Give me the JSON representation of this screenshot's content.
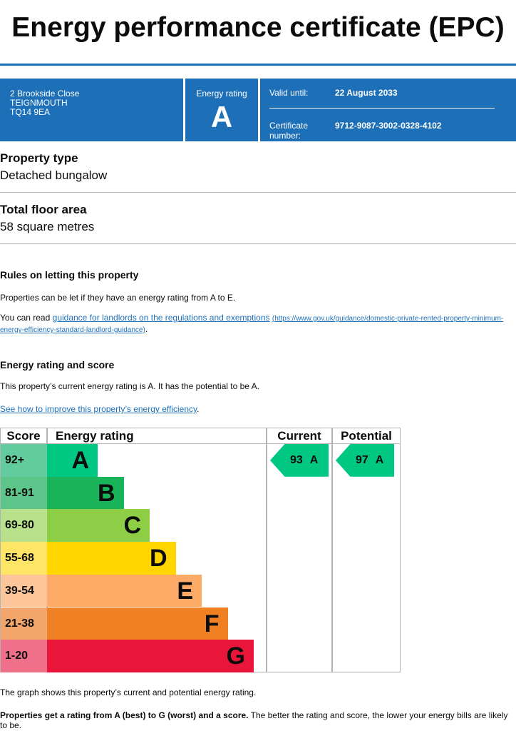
{
  "header": {
    "title": "Energy performance certificate (EPC)",
    "address": [
      "2 Brookside Close",
      "TEIGNMOUTH",
      "TQ14 9EA"
    ],
    "energy_rating_label": "Energy rating",
    "energy_rating": "A",
    "valid_until_label": "Valid until:",
    "valid_until": "22 August 2033",
    "certificate_label": "Certificate number:",
    "certificate_number": "9712-9087-3002-0328-4102"
  },
  "property_type": {
    "heading": "Property type",
    "value": "Detached bungalow"
  },
  "floor_area": {
    "heading": "Total floor area",
    "value": "58 square metres"
  },
  "letting": {
    "heading": "Rules on letting this property",
    "text": "Properties can be let if they have an energy rating from A to E.",
    "read_prefix": "You can read",
    "link_text": "guidance for landlords on the regulations and exemptions",
    "link_url": "(https://www.gov.uk/guidance/domestic-private-rented-property-minimum-energy-efficiency-standard-landlord-guidance)",
    "suffix": "."
  },
  "rating_section": {
    "heading": "Energy rating and score",
    "text": "This property’s current energy rating is A. It has the potential to be A.",
    "link_text": "See how to improve this property’s energy efficiency",
    "suffix": "."
  },
  "epc_table": {
    "headers": [
      "Score",
      "Energy rating",
      "Current",
      "Potential"
    ],
    "bands": [
      {
        "score": "92+",
        "rating": "A"
      },
      {
        "score": "81-91",
        "rating": "B"
      },
      {
        "score": "69-80",
        "rating": "C"
      },
      {
        "score": "55-68",
        "rating": "D"
      },
      {
        "score": "39-54",
        "rating": "E"
      },
      {
        "score": "21-38",
        "rating": "F"
      },
      {
        "score": "1-20",
        "rating": "G"
      }
    ],
    "current": {
      "score": 93,
      "rating": "A"
    },
    "potential": {
      "score": 97,
      "rating": "A"
    }
  },
  "footer": {
    "text": "The graph shows this property’s current and potential energy rating.",
    "bold": "Properties get a rating from A (best) to G (worst) and a score.",
    "rest": "The better the rating and score, the lower your energy bills are likely to be."
  }
}
